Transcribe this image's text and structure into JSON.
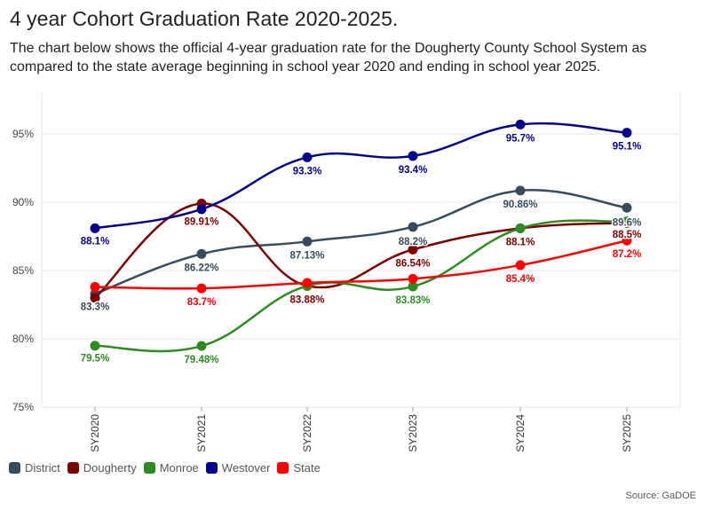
{
  "title": "4 year Cohort Graduation Rate 2020-2025.",
  "subtitle": "The chart below shows the official 4-year graduation rate for the Dougherty County School System as compared to the state average beginning in school year 2020 and ending in school year 2025.",
  "source": "Source: GaDOE",
  "chart_data": {
    "type": "line",
    "title": "4 year Cohort Graduation Rate 2020-2025.",
    "xlabel": "",
    "ylabel": "",
    "categories": [
      "SY2020",
      "SY2021",
      "SY2022",
      "SY2023",
      "SY2024",
      "SY2025"
    ],
    "ylim": [
      75,
      98
    ],
    "yticks": [
      75,
      80,
      85,
      90,
      95
    ],
    "ytick_labels": [
      "75%",
      "80%",
      "85%",
      "90%",
      "95%"
    ],
    "grid": true,
    "legend": "bottom-left",
    "series": [
      {
        "name": "District",
        "color": "#374b5a",
        "values": [
          83.3,
          86.22,
          87.13,
          88.2,
          90.86,
          89.6
        ],
        "labels": [
          "83.3%",
          "86.22%",
          "87.13%",
          "88.2%",
          "90.86%",
          "89.6%"
        ]
      },
      {
        "name": "Dougherty",
        "color": "#7a0000",
        "values": [
          83.0,
          89.91,
          83.88,
          86.54,
          88.1,
          88.5
        ],
        "labels": [
          "",
          "89.91%",
          "83.88%",
          "86.54%",
          "88.1%",
          "88.5%"
        ]
      },
      {
        "name": "Monroe",
        "color": "#2e8b24",
        "values": [
          79.5,
          79.48,
          83.88,
          83.83,
          88.1,
          88.6
        ],
        "labels": [
          "79.5%",
          "79.48%",
          "",
          "83.83%",
          "",
          ""
        ]
      },
      {
        "name": "Westover",
        "color": "#02008a",
        "values": [
          88.1,
          89.5,
          93.3,
          93.4,
          95.7,
          95.1
        ],
        "labels": [
          "88.1%",
          "",
          "93.3%",
          "93.4%",
          "95.7%",
          "95.1%"
        ]
      },
      {
        "name": "State",
        "color": "#ff0000",
        "values": [
          83.8,
          83.7,
          84.1,
          84.4,
          85.4,
          87.2
        ],
        "labels": [
          "",
          "83.7%",
          "",
          "",
          "85.4%",
          "87.2%"
        ]
      }
    ]
  }
}
